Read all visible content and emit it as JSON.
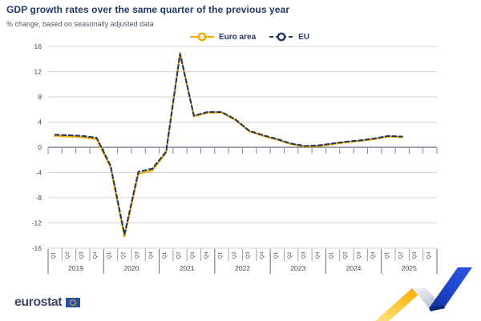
{
  "header": {
    "title": "GDP growth rates over the same quarter of the previous year",
    "subtitle": "% change, based on seasonally adjusted data"
  },
  "legend": {
    "items": [
      {
        "label": "Euro area",
        "color": "#F0A800",
        "line_style": "solid"
      },
      {
        "label": "EU",
        "color": "#24395F",
        "line_style": "dashed"
      }
    ]
  },
  "chart_data": {
    "type": "line",
    "title": "GDP growth rates over the same quarter of the previous year",
    "subtitle": "% change, based on seasonally adjusted data",
    "ylabel": "% change",
    "ylim": [
      -16,
      16
    ],
    "yticks": [
      16,
      12,
      8,
      4,
      0,
      -4,
      -8,
      -12,
      -16
    ],
    "grid": "horizontal",
    "legend_position": "top-center",
    "x_years": [
      "2019",
      "2020",
      "2021",
      "2022",
      "2023",
      "2024",
      "2025"
    ],
    "x_quarters": [
      "Q1",
      "Q2",
      "Q3",
      "Q4"
    ],
    "x": [
      "2019-Q1",
      "2019-Q2",
      "2019-Q3",
      "2019-Q4",
      "2020-Q1",
      "2020-Q2",
      "2020-Q3",
      "2020-Q4",
      "2021-Q1",
      "2021-Q2",
      "2021-Q3",
      "2021-Q4",
      "2022-Q1",
      "2022-Q2",
      "2022-Q3",
      "2022-Q4",
      "2023-Q1",
      "2023-Q2",
      "2023-Q3",
      "2023-Q4",
      "2024-Q1",
      "2024-Q2",
      "2024-Q3",
      "2024-Q4",
      "2025-Q1",
      "2025-Q2"
    ],
    "series": [
      {
        "name": "Euro area",
        "color": "#F0A800",
        "line_style": "solid",
        "values": [
          1.8,
          1.7,
          1.6,
          1.3,
          -3.2,
          -14.2,
          -4.2,
          -3.7,
          -0.9,
          15.0,
          4.9,
          5.5,
          5.5,
          4.3,
          2.5,
          1.8,
          1.2,
          0.5,
          0.1,
          0.2,
          0.5,
          0.8,
          1.0,
          1.3,
          1.7,
          1.6
        ]
      },
      {
        "name": "EU",
        "color": "#24395F",
        "line_style": "dashed",
        "values": [
          2.0,
          1.9,
          1.8,
          1.5,
          -2.9,
          -13.8,
          -3.9,
          -3.4,
          -0.7,
          14.8,
          5.0,
          5.6,
          5.6,
          4.4,
          2.6,
          1.9,
          1.3,
          0.6,
          0.2,
          0.3,
          0.6,
          0.9,
          1.1,
          1.4,
          1.8,
          1.7
        ]
      }
    ]
  },
  "colors": {
    "grid": "#D0D3DA",
    "zero_axis": "#7C8495",
    "axis_text": "#3F4859",
    "quarter_separator": "#9AA0AD",
    "year_separator": "#646B7C",
    "flag_blue": "#2B4EA2",
    "flag_stars": "#FFD617"
  },
  "footer": {
    "wordmark": "eurostat"
  }
}
